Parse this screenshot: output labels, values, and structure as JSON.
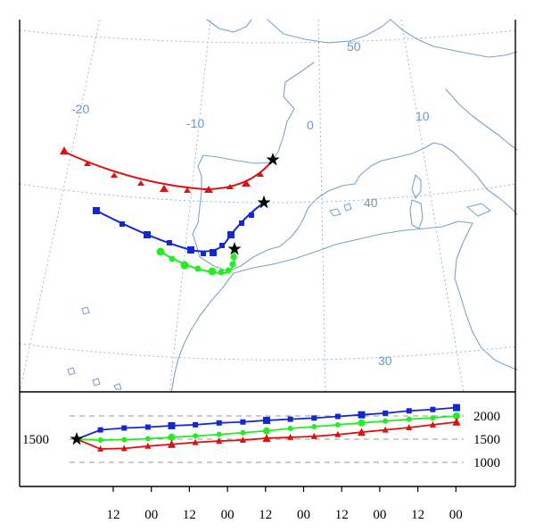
{
  "map": {
    "lon_labels": [
      "-20",
      "-10",
      "0",
      "10"
    ],
    "lat_labels": [
      "50",
      "40",
      "30"
    ]
  },
  "chart_data": {
    "type": "line",
    "xlabel": "",
    "ylabel": "",
    "x_tick_labels": [
      "12",
      "00",
      "12",
      "00",
      "12",
      "00",
      "12",
      "00",
      "12",
      "00"
    ],
    "y_tick_labels": [
      "2000",
      "1500",
      "1000"
    ],
    "start_height_label": "1500",
    "ylim": [
      930,
      2160
    ],
    "series": [
      {
        "color": "#1428d2",
        "marker": "square",
        "heights": [
          1500,
          1700,
          1740,
          1760,
          1790,
          1810,
          1850,
          1870,
          1905,
          1930,
          1955,
          1990,
          2025,
          2060,
          2110,
          2140,
          2180
        ]
      },
      {
        "color": "#22ee22",
        "marker": "circle",
        "heights": [
          1500,
          1480,
          1490,
          1510,
          1540,
          1570,
          1600,
          1640,
          1680,
          1730,
          1770,
          1810,
          1850,
          1890,
          1930,
          1960,
          2000
        ]
      },
      {
        "color": "#dd1111",
        "marker": "triangle",
        "heights": [
          1500,
          1290,
          1300,
          1350,
          1390,
          1430,
          1460,
          1480,
          1520,
          1540,
          1560,
          1600,
          1650,
          1700,
          1750,
          1810,
          1870
        ]
      }
    ]
  }
}
